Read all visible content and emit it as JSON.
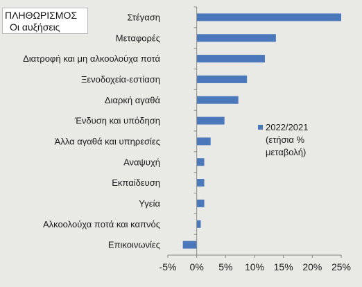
{
  "title": "ΠΛΗΘΩΡΙΣΜΟΣ",
  "subtitle": "Οι αυξήσεις",
  "colors": {
    "bar": "#4a78bb",
    "axis": "#888888",
    "background": "#e9e9e6"
  },
  "chart_data": {
    "type": "bar",
    "orientation": "horizontal",
    "categories": [
      "Στέγαση",
      "Μεταφορές",
      "Διατροφή και μη αλκοολούχα ποτά",
      "Ξενοδοχεία-εστίαση",
      "Διαρκή αγαθά",
      "Ένδυση και υπόδηση",
      "Άλλα αγαθά και υπηρεσίες",
      "Αναψυχή",
      "Εκπαίδευση",
      "Υγεία",
      "Αλκοολούχα ποτά και καπνός",
      "Επικοινωνίες"
    ],
    "series": [
      {
        "name": "2022/2021 (ετήσια % μεταβολή)",
        "legend_lines": [
          "2022/2021",
          "(ετήσια %",
          "μεταβολή)"
        ],
        "values": [
          25.0,
          13.7,
          11.8,
          8.7,
          7.2,
          4.8,
          2.4,
          1.3,
          1.3,
          1.3,
          0.7,
          -2.4
        ]
      }
    ],
    "xlim": [
      -5,
      25
    ],
    "xticks": [
      -5,
      0,
      5,
      10,
      15,
      20,
      25
    ],
    "xtick_labels": [
      "-5%",
      "0%",
      "5%",
      "10%",
      "15%",
      "20%",
      "25%"
    ],
    "grid": false,
    "legend_position": "right"
  }
}
